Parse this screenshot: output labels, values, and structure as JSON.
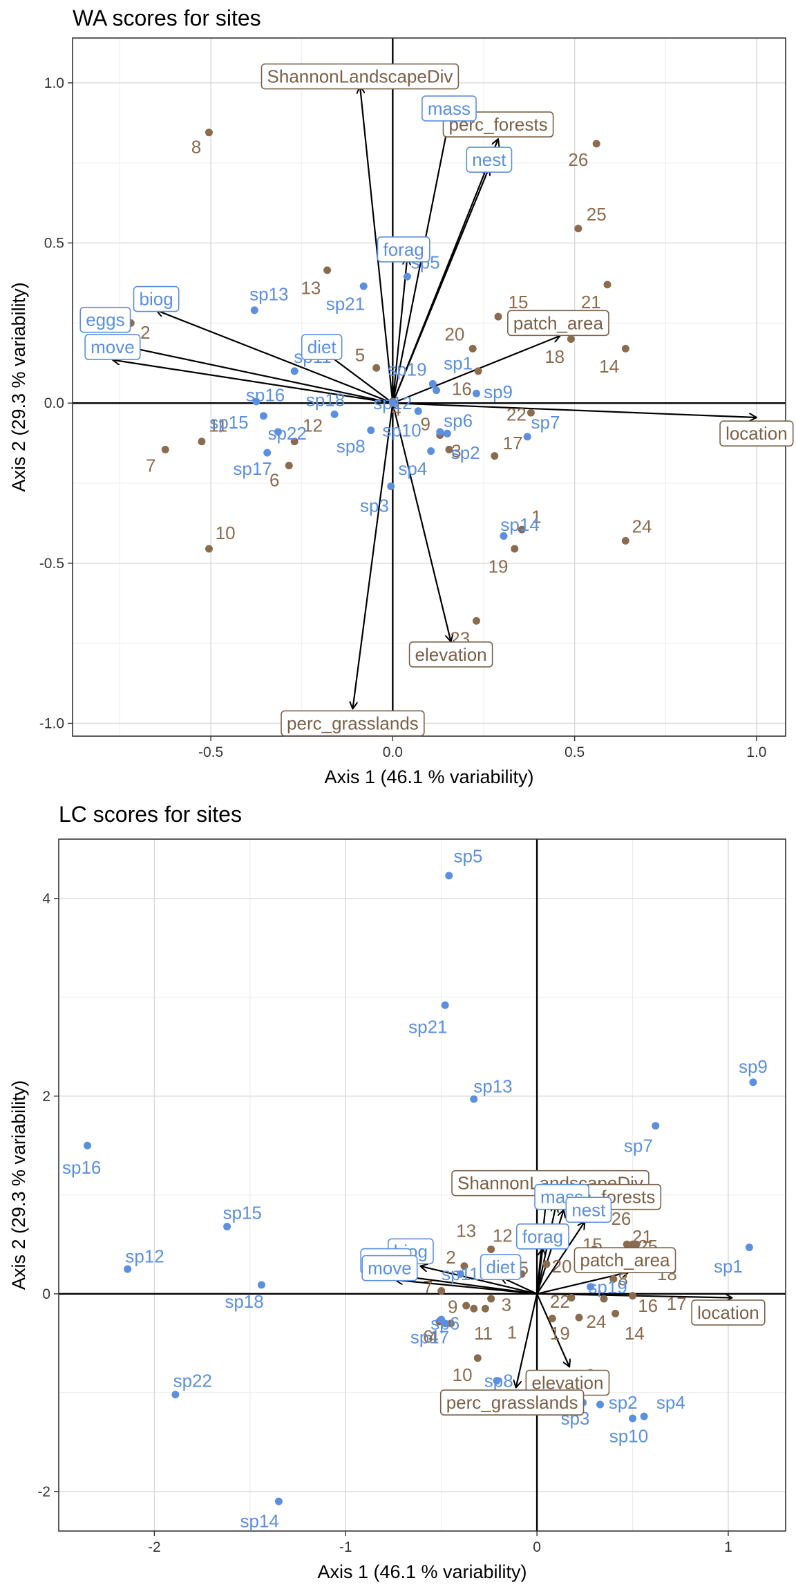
{
  "charts": [
    {
      "title": "WA scores for sites"
    },
    {
      "title": "LC scores for sites"
    }
  ],
  "colors": {
    "sites": "#8B6B4E",
    "species": "#5B8FE0",
    "env": "#7A6048",
    "arrow": "#000000",
    "grid": "#d9d9d9"
  },
  "chart_data": [
    {
      "type": "scatter",
      "title": "WA scores for sites",
      "xlabel": "Axis 1 (46.1 % variability)",
      "ylabel": "Axis 2 (29.3 % variability)",
      "xlim": [
        -0.88,
        1.08
      ],
      "ylim": [
        -1.04,
        1.14
      ],
      "xticks": [
        -0.5,
        0.0,
        0.5,
        1.0
      ],
      "xtick_labels": [
        "-0.5",
        "0.0",
        "0.5",
        "1.0"
      ],
      "yticks": [
        -1.0,
        -0.5,
        0.0,
        0.5,
        1.0
      ],
      "ytick_labels": [
        "-1.0",
        "-0.5",
        "0.0",
        "0.5",
        "1.0"
      ],
      "grid": true,
      "sites": [
        {
          "label": "8",
          "x": -0.505,
          "y": 0.845,
          "lx": -0.54,
          "ly": 0.8
        },
        {
          "label": "26",
          "x": 0.56,
          "y": 0.81,
          "lx": 0.51,
          "ly": 0.76
        },
        {
          "label": "25",
          "x": 0.51,
          "y": 0.545,
          "lx": 0.56,
          "ly": 0.59
        },
        {
          "label": "13",
          "x": -0.18,
          "y": 0.415,
          "lx": -0.225,
          "ly": 0.36
        },
        {
          "label": "15",
          "x": 0.29,
          "y": 0.27,
          "lx": 0.345,
          "ly": 0.315
        },
        {
          "label": "21",
          "x": 0.59,
          "y": 0.37,
          "lx": 0.545,
          "ly": 0.315
        },
        {
          "label": "20",
          "x": 0.22,
          "y": 0.17,
          "lx": 0.17,
          "ly": 0.215
        },
        {
          "label": "5",
          "x": -0.045,
          "y": 0.11,
          "lx": -0.09,
          "ly": 0.15
        },
        {
          "label": "18",
          "x": 0.49,
          "y": 0.2,
          "lx": 0.445,
          "ly": 0.145
        },
        {
          "label": "14",
          "x": 0.64,
          "y": 0.17,
          "lx": 0.595,
          "ly": 0.115
        },
        {
          "label": "16",
          "x": 0.235,
          "y": 0.1,
          "lx": 0.19,
          "ly": 0.045
        },
        {
          "label": "2",
          "x": -0.72,
          "y": 0.25,
          "lx": -0.68,
          "ly": 0.22
        },
        {
          "label": "12",
          "x": -0.27,
          "y": -0.12,
          "lx": -0.22,
          "ly": -0.07
        },
        {
          "label": "9",
          "x": 0.13,
          "y": -0.1,
          "lx": 0.09,
          "ly": -0.065
        },
        {
          "label": "22",
          "x": 0.38,
          "y": -0.03,
          "lx": 0.34,
          "ly": -0.035
        },
        {
          "label": "17",
          "x": 0.28,
          "y": -0.165,
          "lx": 0.33,
          "ly": -0.125
        },
        {
          "label": "3",
          "x": 0.155,
          "y": -0.145,
          "lx": 0.175,
          "ly": -0.15
        },
        {
          "label": "6",
          "x": -0.285,
          "y": -0.195,
          "lx": -0.325,
          "ly": -0.24
        },
        {
          "label": "7",
          "x": -0.625,
          "y": -0.145,
          "lx": -0.665,
          "ly": -0.195
        },
        {
          "label": "11",
          "x": -0.525,
          "y": -0.12,
          "lx": -0.48,
          "ly": -0.07
        },
        {
          "label": "10",
          "x": -0.505,
          "y": -0.455,
          "lx": -0.46,
          "ly": -0.405
        },
        {
          "label": "1",
          "x": 0.355,
          "y": -0.395,
          "lx": 0.395,
          "ly": -0.355
        },
        {
          "label": "19",
          "x": 0.335,
          "y": -0.455,
          "lx": 0.29,
          "ly": -0.51
        },
        {
          "label": "24",
          "x": 0.64,
          "y": -0.43,
          "lx": 0.685,
          "ly": -0.385
        },
        {
          "label": "23",
          "x": 0.23,
          "y": -0.68,
          "lx": 0.185,
          "ly": -0.735
        },
        {
          "label": "4",
          "x": 0.0,
          "y": 0.005,
          "lx": 0.01,
          "ly": -0.02
        }
      ],
      "species": [
        {
          "label": "sp13",
          "x": -0.38,
          "y": 0.29,
          "lx": -0.34,
          "ly": 0.34
        },
        {
          "label": "sp21",
          "x": -0.08,
          "y": 0.365,
          "lx": -0.13,
          "ly": 0.31
        },
        {
          "label": "sp5",
          "x": 0.04,
          "y": 0.395,
          "lx": 0.09,
          "ly": 0.44
        },
        {
          "label": "sp11",
          "x": -0.27,
          "y": 0.1,
          "lx": -0.22,
          "ly": 0.145
        },
        {
          "label": "sp19",
          "x": 0.11,
          "y": 0.06,
          "lx": 0.04,
          "ly": 0.105
        },
        {
          "label": "sp1",
          "x": 0.12,
          "y": 0.04,
          "lx": 0.18,
          "ly": 0.125
        },
        {
          "label": "sp9",
          "x": 0.23,
          "y": 0.03,
          "lx": 0.29,
          "ly": 0.035
        },
        {
          "label": "sp16",
          "x": -0.375,
          "y": 0.005,
          "lx": -0.35,
          "ly": 0.025
        },
        {
          "label": "sp18",
          "x": -0.16,
          "y": -0.035,
          "lx": -0.185,
          "ly": 0.01
        },
        {
          "label": "sp15",
          "x": -0.355,
          "y": -0.04,
          "lx": -0.45,
          "ly": -0.06
        },
        {
          "label": "sp22",
          "x": -0.315,
          "y": -0.09,
          "lx": -0.29,
          "ly": -0.095
        },
        {
          "label": "sp6",
          "x": 0.13,
          "y": -0.09,
          "lx": 0.18,
          "ly": -0.055
        },
        {
          "label": "sp7",
          "x": 0.37,
          "y": -0.105,
          "lx": 0.42,
          "ly": -0.06
        },
        {
          "label": "sp8",
          "x": -0.06,
          "y": -0.085,
          "lx": -0.115,
          "ly": -0.135
        },
        {
          "label": "sp10",
          "x": 0.07,
          "y": -0.025,
          "lx": 0.025,
          "ly": -0.085
        },
        {
          "label": "sp2",
          "x": 0.15,
          "y": -0.095,
          "lx": 0.2,
          "ly": -0.155
        },
        {
          "label": "sp17",
          "x": -0.345,
          "y": -0.155,
          "lx": -0.385,
          "ly": -0.205
        },
        {
          "label": "sp4",
          "x": 0.105,
          "y": -0.15,
          "lx": 0.055,
          "ly": -0.205
        },
        {
          "label": "sp3",
          "x": -0.005,
          "y": -0.26,
          "lx": -0.05,
          "ly": -0.32
        },
        {
          "label": "sp14",
          "x": 0.305,
          "y": -0.415,
          "lx": 0.35,
          "ly": -0.38
        },
        {
          "label": "sp12",
          "x": 0.0,
          "y": 0.0,
          "lx": 0.0,
          "ly": 0.0
        }
      ],
      "env_vectors": [
        {
          "name": "ShannonLandscapeDiv",
          "x": -0.09,
          "y": 0.99,
          "lx": -0.09,
          "ly": 1.02
        },
        {
          "name": "perc_forests",
          "x": 0.29,
          "y": 0.825,
          "lx": 0.29,
          "ly": 0.87
        },
        {
          "name": "patch_area",
          "x": 0.46,
          "y": 0.21,
          "lx": 0.455,
          "ly": 0.25
        },
        {
          "name": "location",
          "x": 1.0,
          "y": -0.045,
          "lx": 1.0,
          "ly": -0.095
        },
        {
          "name": "elevation",
          "x": 0.16,
          "y": -0.745,
          "lx": 0.16,
          "ly": -0.785
        },
        {
          "name": "perc_grasslands",
          "x": -0.11,
          "y": -0.955,
          "lx": -0.11,
          "ly": -1.0
        }
      ],
      "species_traits": [
        {
          "name": "mass",
          "x": 0.155,
          "y": 0.885,
          "lx": 0.155,
          "ly": 0.92
        },
        {
          "name": "nest",
          "x": 0.265,
          "y": 0.735,
          "lx": 0.265,
          "ly": 0.76
        },
        {
          "name": "forag",
          "x": 0.04,
          "y": 0.455,
          "lx": 0.03,
          "ly": 0.48
        },
        {
          "name": "biog",
          "x": -0.65,
          "y": 0.29,
          "lx": -0.65,
          "ly": 0.325
        },
        {
          "name": "eggs",
          "x": -0.79,
          "y": 0.19,
          "lx": -0.79,
          "ly": 0.26
        },
        {
          "name": "move",
          "x": -0.77,
          "y": 0.135,
          "lx": -0.77,
          "ly": 0.175
        },
        {
          "name": "diet",
          "x": -0.2,
          "y": 0.17,
          "lx": -0.195,
          "ly": 0.175
        }
      ]
    },
    {
      "type": "scatter",
      "title": "LC scores for sites",
      "xlabel": "Axis 1 (46.1 % variability)",
      "ylabel": "Axis 2 (29.3 % variability)",
      "xlim": [
        -2.5,
        1.3
      ],
      "ylim": [
        -2.4,
        4.6
      ],
      "xticks": [
        -2,
        -1,
        0,
        1
      ],
      "xtick_labels": [
        "-2",
        "-1",
        "0",
        "1"
      ],
      "yticks": [
        -2,
        0,
        2,
        4
      ],
      "ytick_labels": [
        "-2",
        "0",
        "2",
        "4"
      ],
      "grid": true,
      "sites": [
        {
          "label": "13",
          "x": -0.24,
          "y": 0.45,
          "lx": -0.37,
          "ly": 0.64
        },
        {
          "label": "12",
          "x": -0.2,
          "y": 0.3,
          "lx": -0.18,
          "ly": 0.59
        },
        {
          "label": "2",
          "x": -0.38,
          "y": 0.28,
          "lx": -0.45,
          "ly": 0.37
        },
        {
          "label": "26",
          "x": 0.47,
          "y": 0.5,
          "lx": 0.44,
          "ly": 0.76
        },
        {
          "label": "15",
          "x": 0.3,
          "y": 0.45,
          "lx": 0.29,
          "ly": 0.5
        },
        {
          "label": "25",
          "x": 0.5,
          "y": 0.5,
          "lx": 0.58,
          "ly": 0.48
        },
        {
          "label": "18",
          "x": 0.62,
          "y": 0.25,
          "lx": 0.68,
          "ly": 0.2
        },
        {
          "label": "20",
          "x": 0.05,
          "y": 0.3,
          "lx": 0.13,
          "ly": 0.28
        },
        {
          "label": "7",
          "x": -0.5,
          "y": 0.03,
          "lx": -0.57,
          "ly": 0.07
        },
        {
          "label": "5",
          "x": -0.08,
          "y": 0.2,
          "lx": -0.07,
          "ly": 0.26
        },
        {
          "label": "9",
          "x": -0.37,
          "y": -0.12,
          "lx": -0.44,
          "ly": -0.13
        },
        {
          "label": "3",
          "x": -0.24,
          "y": -0.05,
          "lx": -0.16,
          "ly": -0.11
        },
        {
          "label": "22",
          "x": 0.18,
          "y": -0.04,
          "lx": 0.12,
          "ly": -0.08
        },
        {
          "label": "17",
          "x": 0.35,
          "y": -0.05,
          "lx": 0.73,
          "ly": -0.1
        },
        {
          "label": "16",
          "x": 0.5,
          "y": -0.02,
          "lx": 0.58,
          "ly": -0.12
        },
        {
          "label": "24",
          "x": 0.22,
          "y": -0.24,
          "lx": 0.31,
          "ly": -0.28
        },
        {
          "label": "14",
          "x": 0.41,
          "y": -0.2,
          "lx": 0.51,
          "ly": -0.4
        },
        {
          "label": "11",
          "x": -0.33,
          "y": -0.15,
          "lx": -0.28,
          "ly": -0.4
        },
        {
          "label": "1",
          "x": -0.27,
          "y": -0.15,
          "lx": -0.13,
          "ly": -0.39
        },
        {
          "label": "19",
          "x": 0.08,
          "y": -0.25,
          "lx": 0.12,
          "ly": -0.4
        },
        {
          "label": "6",
          "x": -0.51,
          "y": -0.28,
          "lx": -0.57,
          "ly": -0.43
        },
        {
          "label": "4",
          "x": -0.45,
          "y": -0.3,
          "lx": -0.54,
          "ly": -0.43
        },
        {
          "label": "10",
          "x": -0.31,
          "y": -0.65,
          "lx": -0.39,
          "ly": -0.82
        },
        {
          "label": "23",
          "x": 0.28,
          "y": -0.8,
          "lx": 0.32,
          "ly": -0.88
        },
        {
          "label": "21",
          "x": 0.52,
          "y": 0.5,
          "lx": 0.55,
          "ly": 0.58
        },
        {
          "label": "8",
          "x": 0.4,
          "y": 0.15,
          "lx": 0.45,
          "ly": 0.15
        }
      ],
      "species": [
        {
          "label": "sp5",
          "x": -0.46,
          "y": 4.23,
          "lx": -0.36,
          "ly": 4.43
        },
        {
          "label": "sp21",
          "x": -0.48,
          "y": 2.92,
          "lx": -0.57,
          "ly": 2.7
        },
        {
          "label": "sp13",
          "x": -0.33,
          "y": 1.97,
          "lx": -0.23,
          "ly": 2.1
        },
        {
          "label": "sp9",
          "x": 1.13,
          "y": 2.14,
          "lx": 1.13,
          "ly": 2.3
        },
        {
          "label": "sp7",
          "x": 0.62,
          "y": 1.7,
          "lx": 0.53,
          "ly": 1.5
        },
        {
          "label": "sp1",
          "x": 1.11,
          "y": 0.47,
          "lx": 1.0,
          "ly": 0.28
        },
        {
          "label": "sp16",
          "x": -2.35,
          "y": 1.5,
          "lx": -2.38,
          "ly": 1.28
        },
        {
          "label": "sp15",
          "x": -1.62,
          "y": 0.68,
          "lx": -1.54,
          "ly": 0.82
        },
        {
          "label": "sp12",
          "x": -2.14,
          "y": 0.25,
          "lx": -2.05,
          "ly": 0.38
        },
        {
          "label": "sp18",
          "x": -1.44,
          "y": 0.09,
          "lx": -1.53,
          "ly": -0.08
        },
        {
          "label": "sp22",
          "x": -1.89,
          "y": -1.02,
          "lx": -1.8,
          "ly": -0.88
        },
        {
          "label": "sp14",
          "x": -1.35,
          "y": -2.1,
          "lx": -1.45,
          "ly": -2.3
        },
        {
          "label": "sp17",
          "x": -0.5,
          "y": -0.26,
          "lx": -0.56,
          "ly": -0.44
        },
        {
          "label": "sp19",
          "x": 0.28,
          "y": 0.07,
          "lx": 0.37,
          "ly": 0.07
        },
        {
          "label": "sp2",
          "x": 0.33,
          "y": -1.12,
          "lx": 0.45,
          "ly": -1.1
        },
        {
          "label": "sp4",
          "x": 0.56,
          "y": -1.24,
          "lx": 0.7,
          "ly": -1.1
        },
        {
          "label": "sp10",
          "x": 0.5,
          "y": -1.26,
          "lx": 0.48,
          "ly": -1.44
        },
        {
          "label": "sp3",
          "x": 0.24,
          "y": -1.1,
          "lx": 0.2,
          "ly": -1.26
        },
        {
          "label": "sp8",
          "x": -0.21,
          "y": -0.88,
          "lx": -0.2,
          "ly": -0.88
        },
        {
          "label": "sp6",
          "x": -0.48,
          "y": -0.3,
          "lx": -0.48,
          "ly": -0.3
        },
        {
          "label": "sp11",
          "x": -0.4,
          "y": 0.2,
          "lx": -0.4,
          "ly": 0.2
        }
      ],
      "env_vectors": [
        {
          "name": "ShannonLandscapeDiv",
          "x": 0.05,
          "y": 0.99,
          "lx": 0.07,
          "ly": 1.12
        },
        {
          "name": "perc_forests",
          "x": 0.14,
          "y": 0.85,
          "lx": 0.36,
          "ly": 0.98
        },
        {
          "name": "patch_area",
          "x": 0.48,
          "y": 0.22,
          "lx": 0.46,
          "ly": 0.34
        },
        {
          "name": "location",
          "x": 1.02,
          "y": -0.04,
          "lx": 1.0,
          "ly": -0.19
        },
        {
          "name": "elevation",
          "x": 0.17,
          "y": -0.74,
          "lx": 0.16,
          "ly": -0.9
        },
        {
          "name": "perc_grasslands",
          "x": -0.11,
          "y": -0.95,
          "lx": -0.13,
          "ly": -1.1
        }
      ],
      "species_traits": [
        {
          "name": "mass",
          "x": 0.1,
          "y": 0.9,
          "lx": 0.13,
          "ly": 0.98
        },
        {
          "name": "nest",
          "x": 0.25,
          "y": 0.73,
          "lx": 0.27,
          "ly": 0.85
        },
        {
          "name": "forag",
          "x": 0.03,
          "y": 0.46,
          "lx": 0.03,
          "ly": 0.58
        },
        {
          "name": "biog",
          "x": -0.61,
          "y": 0.28,
          "lx": -0.66,
          "ly": 0.43
        },
        {
          "name": "eggs",
          "x": -0.75,
          "y": 0.19,
          "lx": -0.79,
          "ly": 0.33
        },
        {
          "name": "move",
          "x": -0.74,
          "y": 0.14,
          "lx": -0.77,
          "ly": 0.26
        },
        {
          "name": "diet",
          "x": -0.19,
          "y": 0.17,
          "lx": -0.19,
          "ly": 0.27
        }
      ]
    }
  ]
}
